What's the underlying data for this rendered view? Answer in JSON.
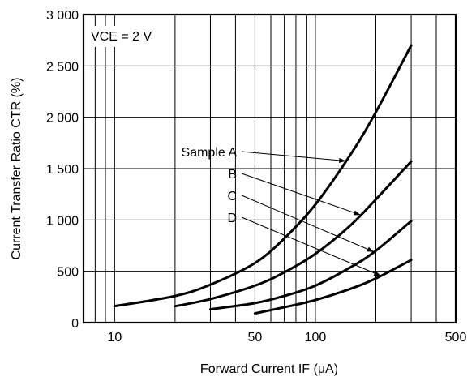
{
  "chart_data": {
    "type": "line",
    "x_scale": "log",
    "xlim": [
      7,
      500
    ],
    "ylim": [
      0,
      3000
    ],
    "grid": true,
    "xlabel": "Forward Current IF (μA)",
    "ylabel": "Current Transfer Ratio CTR (%)",
    "annotation": "VCE = 2 V",
    "x_tick_labels": [
      {
        "value": 10,
        "label": "10"
      },
      {
        "value": 50,
        "label": "50"
      },
      {
        "value": 100,
        "label": "100"
      },
      {
        "value": 500,
        "label": "500"
      }
    ],
    "y_tick_labels": [
      {
        "value": 0,
        "label": "0"
      },
      {
        "value": 500,
        "label": "500"
      },
      {
        "value": 1000,
        "label": "1 000"
      },
      {
        "value": 1500,
        "label": "1 500"
      },
      {
        "value": 2000,
        "label": "2 000"
      },
      {
        "value": 2500,
        "label": "2 500"
      },
      {
        "value": 3000,
        "label": "3 000"
      }
    ],
    "series": [
      {
        "name": "Sample A",
        "x": [
          10,
          20,
          30,
          50,
          70,
          100,
          150,
          200,
          300
        ],
        "y": [
          160,
          260,
          370,
          580,
          820,
          1150,
          1640,
          2050,
          2700
        ]
      },
      {
        "name": "B",
        "x": [
          20,
          30,
          50,
          70,
          100,
          150,
          200,
          300
        ],
        "y": [
          160,
          230,
          360,
          490,
          670,
          950,
          1200,
          1570
        ]
      },
      {
        "name": "C",
        "x": [
          30,
          50,
          70,
          100,
          150,
          200,
          300
        ],
        "y": [
          130,
          190,
          260,
          360,
          540,
          700,
          990
        ]
      },
      {
        "name": "D",
        "x": [
          50,
          70,
          100,
          150,
          200,
          300
        ],
        "y": [
          90,
          150,
          220,
          330,
          430,
          610
        ]
      }
    ]
  }
}
